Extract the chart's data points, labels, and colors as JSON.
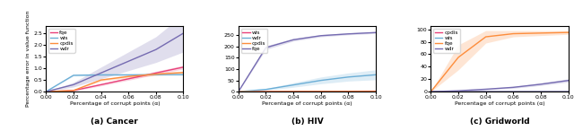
{
  "x": [
    0.0,
    0.02,
    0.04,
    0.06,
    0.08,
    0.1
  ],
  "cancer": {
    "fqe": {
      "mean": [
        0.0,
        0.05,
        0.3,
        0.55,
        0.8,
        1.05
      ],
      "std": [
        0.0,
        0.02,
        0.05,
        0.06,
        0.07,
        0.08
      ]
    },
    "wis": {
      "mean": [
        0.0,
        0.7,
        0.72,
        0.72,
        0.73,
        0.73
      ],
      "std": [
        0.0,
        0.03,
        0.03,
        0.03,
        0.03,
        0.03
      ]
    },
    "cpdis": {
      "mean": [
        0.0,
        0.05,
        0.5,
        0.65,
        0.75,
        0.82
      ],
      "std": [
        0.0,
        0.02,
        0.05,
        0.06,
        0.06,
        0.06
      ]
    },
    "wdr": {
      "mean": [
        0.0,
        0.3,
        0.8,
        1.3,
        1.8,
        2.5
      ],
      "std": [
        0.0,
        0.1,
        0.25,
        0.4,
        0.55,
        0.8
      ]
    },
    "colors": {
      "fqe": "#e8417a",
      "wis": "#6baed6",
      "cpdis": "#fd8d3c",
      "wdr": "#756bb1"
    },
    "ylabel": "Percentage error in value function",
    "ylim": [
      0,
      2.8
    ],
    "yticks": [
      0.0,
      0.5,
      1.0,
      1.5,
      2.0,
      2.5
    ],
    "legend_order": [
      "fqe",
      "wis",
      "cpdis",
      "wdr"
    ],
    "title": "(a) Cancer"
  },
  "hiv": {
    "wis": {
      "mean": [
        0.0,
        0.5,
        1.0,
        1.5,
        2.0,
        2.5
      ],
      "std": [
        0.0,
        0.2,
        0.2,
        0.2,
        0.2,
        0.2
      ]
    },
    "wdr": {
      "mean": [
        0.0,
        10.0,
        30.0,
        50.0,
        65.0,
        75.0
      ],
      "std": [
        0.0,
        4.0,
        10.0,
        15.0,
        18.0,
        22.0
      ]
    },
    "cpdis": {
      "mean": [
        0.0,
        0.5,
        0.8,
        1.0,
        1.2,
        1.4
      ],
      "std": [
        0.0,
        0.1,
        0.1,
        0.1,
        0.1,
        0.1
      ]
    },
    "fqe": {
      "mean": [
        0.0,
        195.0,
        230.0,
        248.0,
        256.0,
        262.0
      ],
      "std": [
        0.0,
        8.0,
        6.0,
        5.0,
        4.0,
        4.0
      ]
    },
    "colors": {
      "wis": "#e8417a",
      "wdr": "#6baed6",
      "cpdis": "#fd8d3c",
      "fqe": "#756bb1"
    },
    "ylabel": "Percentage error in value function",
    "ylim": [
      0,
      290
    ],
    "yticks": [
      0,
      50,
      100,
      150,
      200,
      250
    ],
    "legend_order": [
      "wis",
      "wdr",
      "cpdis",
      "fqe"
    ],
    "title": "(b) HIV"
  },
  "gridworld": {
    "cpdis": {
      "mean": [
        0.0,
        0.1,
        0.2,
        0.2,
        0.2,
        0.2
      ],
      "std": [
        0.0,
        0.05,
        0.05,
        0.05,
        0.05,
        0.05
      ]
    },
    "wis": {
      "mean": [
        0.0,
        0.1,
        0.15,
        0.15,
        0.15,
        0.15
      ],
      "std": [
        0.0,
        0.05,
        0.05,
        0.05,
        0.05,
        0.05
      ]
    },
    "fqe": {
      "mean": [
        0.0,
        55.0,
        88.0,
        93.0,
        94.0,
        95.0
      ],
      "std": [
        0.0,
        20.0,
        10.0,
        5.0,
        4.0,
        3.0
      ]
    },
    "wdr": {
      "mean": [
        0.0,
        1.5,
        4.0,
        7.0,
        12.0,
        18.0
      ],
      "std": [
        0.0,
        0.5,
        1.0,
        1.5,
        2.0,
        2.5
      ]
    },
    "colors": {
      "cpdis": "#e8417a",
      "wis": "#6baed6",
      "fqe": "#fd8d3c",
      "wdr": "#756bb1"
    },
    "ylabel": "Percentage error in value function",
    "ylim": [
      0,
      105
    ],
    "yticks": [
      0,
      20,
      40,
      60,
      80,
      100
    ],
    "legend_order": [
      "cpdis",
      "wis",
      "fqe",
      "wdr"
    ],
    "title": "(c) Gridworld"
  },
  "xlabel": "Percentage of corrupt points (α)",
  "xticks": [
    0.0,
    0.02,
    0.04,
    0.06,
    0.08,
    0.1
  ],
  "xticklabels": [
    "0.00",
    "0.02",
    "0.04",
    "0.06",
    "0.08",
    "0.10"
  ]
}
